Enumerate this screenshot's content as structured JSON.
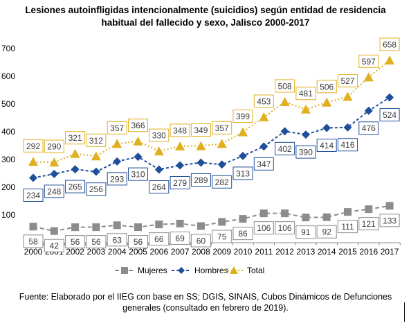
{
  "title_line1": "Lesiones autoinfligidas intencionalmente (suicidios) según entidad de residencia",
  "title_line2": "habitual del fallecido y sexo, Jalisco 2000-2017",
  "source_line1": "Fuente: Elaborado por el IIEG con base en SS; DGIS, SINAIS, Cubos Dinámicos de Defunciones",
  "source_line2": "generales (consultado en febrero de 2019).",
  "chart_data": {
    "type": "line",
    "title": "Lesiones autoinfligidas intencionalmente (suicidios) según entidad de residencia habitual del fallecido y sexo, Jalisco 2000-2017",
    "xlabel": "",
    "ylabel": "",
    "ylim": [
      0,
      700
    ],
    "yticks": [
      100,
      200,
      300,
      400,
      500,
      600,
      700
    ],
    "grid": false,
    "legend_position": "bottom",
    "categories": [
      "2000",
      "2001",
      "2002",
      "2003",
      "2004",
      "2005",
      "2006",
      "2007",
      "2008",
      "2009",
      "2010",
      "2011",
      "2012",
      "2013",
      "2014",
      "2015",
      "2016",
      "2017"
    ],
    "series": [
      {
        "name": "Mujeres",
        "color": "#8c8c8c",
        "marker": "square",
        "line": "dashed",
        "values": [
          58,
          42,
          56,
          56,
          63,
          56,
          66,
          69,
          60,
          75,
          86,
          106,
          106,
          91,
          92,
          111,
          121,
          133
        ]
      },
      {
        "name": "Hombres",
        "color": "#1f4e9a",
        "marker": "diamond",
        "line": "dashed",
        "values": [
          234,
          248,
          265,
          256,
          293,
          310,
          264,
          279,
          289,
          282,
          313,
          347,
          402,
          390,
          414,
          416,
          476,
          524
        ]
      },
      {
        "name": "Total",
        "color": "#e0b020",
        "marker": "triangle",
        "line": "dotted",
        "values": [
          292,
          290,
          321,
          312,
          357,
          366,
          330,
          348,
          349,
          357,
          399,
          453,
          508,
          481,
          506,
          527,
          597,
          658
        ]
      }
    ]
  }
}
